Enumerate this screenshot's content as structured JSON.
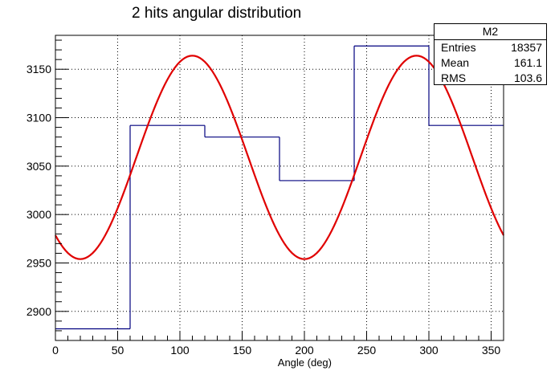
{
  "chart_data": {
    "type": "histogram",
    "title": "2 hits angular distribution",
    "xlabel": "Angle (deg)",
    "ylabel": "",
    "xlim": [
      0,
      360
    ],
    "ylim": [
      2870,
      3185
    ],
    "grid": true,
    "x_ticks": [
      0,
      50,
      100,
      150,
      200,
      250,
      300,
      350
    ],
    "y_ticks": [
      2900,
      2950,
      3000,
      3050,
      3100,
      3150
    ],
    "bins": [
      {
        "x0": 0,
        "x1": 60,
        "value": 2882
      },
      {
        "x0": 60,
        "x1": 120,
        "value": 3092
      },
      {
        "x0": 120,
        "x1": 180,
        "value": 3080
      },
      {
        "x0": 180,
        "x1": 240,
        "value": 3035
      },
      {
        "x0": 240,
        "x1": 300,
        "value": 3174
      },
      {
        "x0": 300,
        "x1": 360,
        "value": 3092
      }
    ],
    "fit": {
      "form": "A + B*sin(2*x - phi)",
      "A": 3059,
      "B": 105,
      "phi_deg": 130,
      "x_range": [
        0,
        360
      ]
    },
    "colors": {
      "histogram": "#00007f",
      "fit": "#e00000"
    }
  },
  "stats_box": {
    "name": "M2",
    "rows": [
      {
        "label": "Entries",
        "value": "18357"
      },
      {
        "label": "Mean",
        "value": "161.1"
      },
      {
        "label": "RMS",
        "value": "103.6"
      }
    ]
  }
}
